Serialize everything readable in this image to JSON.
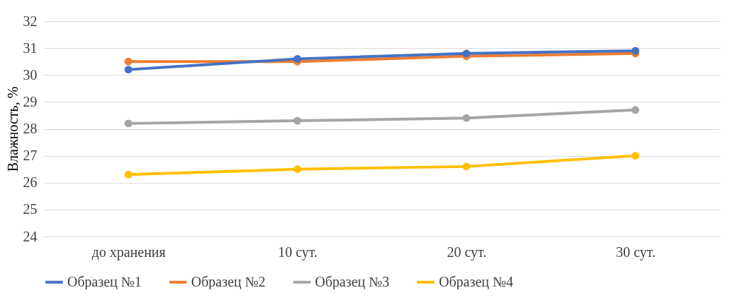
{
  "chart_data": {
    "type": "line",
    "ylabel": "Влажность, %",
    "categories": [
      "до хранения",
      "10 сут.",
      "20 сут.",
      "30 сут."
    ],
    "series": [
      {
        "name": "Образец №1",
        "color": "#4472c4",
        "values": [
          30.2,
          30.6,
          30.8,
          30.9
        ]
      },
      {
        "name": "Образец №2",
        "color": "#ed7d31",
        "values": [
          30.5,
          30.5,
          30.7,
          30.8
        ]
      },
      {
        "name": "Образец №3",
        "color": "#a5a5a5",
        "values": [
          28.2,
          28.3,
          28.4,
          28.7
        ]
      },
      {
        "name": "Образец №4",
        "color": "#ffc000",
        "values": [
          26.3,
          26.5,
          26.6,
          27.0
        ]
      }
    ],
    "ylim": [
      24,
      32
    ],
    "yticks": [
      24,
      25,
      26,
      27,
      28,
      29,
      30,
      31,
      32
    ],
    "grid": "y",
    "legend": "bottom",
    "marker": "circle"
  }
}
